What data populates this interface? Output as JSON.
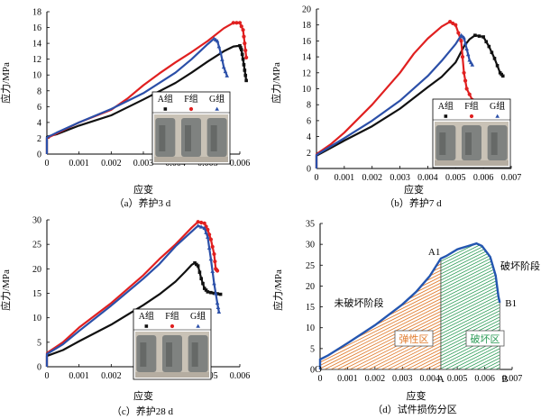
{
  "figure": {
    "panels": [
      {
        "caption": "（a）养护3 d",
        "ylabel": "应力/MPa",
        "xlabel": "应变"
      },
      {
        "caption": "（b）养护7 d",
        "ylabel": "应力/MPa",
        "xlabel": "应变"
      },
      {
        "caption": "（c）养护28 d",
        "ylabel": "应力/MPa",
        "xlabel": "应变"
      },
      {
        "caption": "（d）试件损伤分区",
        "ylabel": "应力/MPa",
        "xlabel": "应变"
      }
    ],
    "legend_labels": [
      "A组",
      "F组",
      "G组"
    ]
  },
  "chart_data": [
    {
      "type": "line",
      "caption": "（a）养护3 d",
      "xlabel": "应变",
      "ylabel": "应力/MPa",
      "xlim": [
        0,
        0.006
      ],
      "ylim": [
        0,
        18
      ],
      "xticks": [
        "0",
        "0.001",
        "0.002",
        "0.003",
        "0.004",
        "0.005",
        "0.006"
      ],
      "yticks": [
        "0",
        "2",
        "4",
        "6",
        "8",
        "10",
        "12",
        "14",
        "16",
        "18"
      ],
      "legend": {
        "position": "bottom-right (inset with specimen photo)"
      },
      "series": [
        {
          "name": "A组",
          "color": "#111111",
          "marker": "square",
          "points": [
            [
              0,
              0
            ],
            [
              0,
              2.2
            ],
            [
              0.0003,
              2.5
            ],
            [
              0.001,
              3.6
            ],
            [
              0.002,
              4.9
            ],
            [
              0.003,
              6.9
            ],
            [
              0.004,
              9.0
            ],
            [
              0.0045,
              10.3
            ],
            [
              0.005,
              11.7
            ],
            [
              0.0055,
              13.0
            ],
            [
              0.0058,
              13.6
            ],
            [
              0.006,
              13.7
            ],
            [
              0.00605,
              13.2
            ],
            [
              0.0061,
              12.0
            ],
            [
              0.00615,
              10.6
            ],
            [
              0.0062,
              9.3
            ]
          ]
        },
        {
          "name": "F组",
          "color": "#e02020",
          "marker": "circle",
          "points": [
            [
              0,
              0
            ],
            [
              0,
              2.0
            ],
            [
              0.0003,
              2.6
            ],
            [
              0.001,
              4.0
            ],
            [
              0.002,
              5.6
            ],
            [
              0.0025,
              7.0
            ],
            [
              0.003,
              8.7
            ],
            [
              0.0035,
              10.2
            ],
            [
              0.004,
              11.6
            ],
            [
              0.0045,
              12.9
            ],
            [
              0.005,
              14.3
            ],
            [
              0.0055,
              15.9
            ],
            [
              0.0058,
              16.6
            ],
            [
              0.006,
              16.6
            ],
            [
              0.0061,
              15.7
            ],
            [
              0.00615,
              14.0
            ],
            [
              0.0062,
              12.2
            ]
          ]
        },
        {
          "name": "G组",
          "color": "#2b4fa8",
          "marker": "triangle",
          "points": [
            [
              0,
              0
            ],
            [
              0,
              2.1
            ],
            [
              0.0003,
              2.7
            ],
            [
              0.001,
              4.0
            ],
            [
              0.002,
              5.7
            ],
            [
              0.003,
              7.7
            ],
            [
              0.004,
              10.3
            ],
            [
              0.0045,
              12.0
            ],
            [
              0.005,
              13.9
            ],
            [
              0.0052,
              14.6
            ],
            [
              0.0053,
              14.3
            ],
            [
              0.0054,
              12.9
            ],
            [
              0.0055,
              11.0
            ],
            [
              0.0056,
              9.9
            ]
          ]
        }
      ]
    },
    {
      "type": "line",
      "caption": "（b）养护7 d",
      "xlabel": "应变",
      "ylabel": "应力/MPa",
      "xlim": [
        0,
        0.007
      ],
      "ylim": [
        0,
        20
      ],
      "xticks": [
        "0",
        "0.001",
        "0.002",
        "0.003",
        "0.004",
        "0.005",
        "0.006",
        "0.007"
      ],
      "yticks": [
        "0",
        "2",
        "4",
        "6",
        "8",
        "10",
        "12",
        "14",
        "16",
        "18",
        "20"
      ],
      "legend": {
        "position": "bottom-right (inset with specimen photo)"
      },
      "series": [
        {
          "name": "A组",
          "color": "#111111",
          "marker": "square",
          "points": [
            [
              0,
              0
            ],
            [
              0,
              1.6
            ],
            [
              0.001,
              3.5
            ],
            [
              0.002,
              5.3
            ],
            [
              0.003,
              7.5
            ],
            [
              0.004,
              10.2
            ],
            [
              0.0045,
              11.5
            ],
            [
              0.005,
              13.3
            ],
            [
              0.0053,
              15.3
            ],
            [
              0.0055,
              16.2
            ],
            [
              0.0057,
              16.7
            ],
            [
              0.006,
              16.5
            ],
            [
              0.0062,
              15.3
            ],
            [
              0.0064,
              13.8
            ],
            [
              0.0066,
              12.0
            ],
            [
              0.0067,
              11.6
            ]
          ]
        },
        {
          "name": "F组",
          "color": "#e02020",
          "marker": "circle",
          "points": [
            [
              0,
              0
            ],
            [
              0,
              1.8
            ],
            [
              0.0005,
              3.0
            ],
            [
              0.001,
              4.5
            ],
            [
              0.002,
              8.0
            ],
            [
              0.003,
              12.0
            ],
            [
              0.0035,
              14.4
            ],
            [
              0.004,
              16.3
            ],
            [
              0.0045,
              17.8
            ],
            [
              0.0048,
              18.4
            ],
            [
              0.005,
              18.0
            ],
            [
              0.0052,
              16.0
            ],
            [
              0.0053,
              12.0
            ],
            [
              0.0054,
              10.0
            ],
            [
              0.0056,
              8.6
            ],
            [
              0.0059,
              8.0
            ]
          ]
        },
        {
          "name": "G组",
          "color": "#2b4fa8",
          "marker": "triangle",
          "points": [
            [
              0,
              0
            ],
            [
              0,
              1.7
            ],
            [
              0.001,
              3.8
            ],
            [
              0.002,
              6.0
            ],
            [
              0.003,
              8.5
            ],
            [
              0.004,
              11.6
            ],
            [
              0.0045,
              13.5
            ],
            [
              0.005,
              15.6
            ],
            [
              0.0052,
              16.7
            ],
            [
              0.0053,
              16.4
            ],
            [
              0.0054,
              15.0
            ],
            [
              0.0055,
              13.6
            ],
            [
              0.0056,
              13.0
            ]
          ]
        }
      ]
    },
    {
      "type": "line",
      "caption": "（c）养护28 d",
      "xlabel": "应变",
      "ylabel": "应力/MPa",
      "xlim": [
        0,
        0.006
      ],
      "ylim": [
        0,
        30
      ],
      "xticks": [
        "0",
        "0.001",
        "0.002",
        "0.003",
        "0.004",
        "0.005",
        "0.006"
      ],
      "yticks": [
        "0",
        "5",
        "10",
        "15",
        "20",
        "25",
        "30"
      ],
      "legend": {
        "position": "bottom-right (inset with specimen photo)"
      },
      "series": [
        {
          "name": "A组",
          "color": "#111111",
          "marker": "square",
          "points": [
            [
              0,
              0
            ],
            [
              0,
              2.2
            ],
            [
              0.0005,
              3.4
            ],
            [
              0.001,
              5.2
            ],
            [
              0.002,
              8.6
            ],
            [
              0.003,
              12.6
            ],
            [
              0.0035,
              14.8
            ],
            [
              0.004,
              17.4
            ],
            [
              0.0043,
              19.4
            ],
            [
              0.0045,
              20.8
            ],
            [
              0.0046,
              21.2
            ],
            [
              0.0047,
              20.6
            ],
            [
              0.0048,
              18.0
            ],
            [
              0.0049,
              16.0
            ],
            [
              0.005,
              15.3
            ],
            [
              0.0052,
              15.0
            ],
            [
              0.0054,
              14.8
            ]
          ]
        },
        {
          "name": "F组",
          "color": "#e02020",
          "marker": "circle",
          "points": [
            [
              0,
              0
            ],
            [
              0,
              2.8
            ],
            [
              0.0005,
              5.0
            ],
            [
              0.001,
              8.0
            ],
            [
              0.002,
              13.0
            ],
            [
              0.003,
              18.7
            ],
            [
              0.0035,
              22.0
            ],
            [
              0.004,
              25.0
            ],
            [
              0.0045,
              28.4
            ],
            [
              0.0047,
              29.6
            ],
            [
              0.0049,
              29.3
            ],
            [
              0.005,
              28.0
            ],
            [
              0.0051,
              26.0
            ],
            [
              0.0052,
              23.0
            ],
            [
              0.00525,
              20.0
            ],
            [
              0.0053,
              19.6
            ]
          ]
        },
        {
          "name": "G组",
          "color": "#2b4fa8",
          "marker": "triangle",
          "points": [
            [
              0,
              0
            ],
            [
              0,
              2.6
            ],
            [
              0.0005,
              4.6
            ],
            [
              0.001,
              7.3
            ],
            [
              0.002,
              12.5
            ],
            [
              0.003,
              18.0
            ],
            [
              0.0035,
              21.0
            ],
            [
              0.004,
              24.6
            ],
            [
              0.0045,
              27.6
            ],
            [
              0.0047,
              28.8
            ],
            [
              0.0049,
              28.3
            ],
            [
              0.005,
              26.5
            ],
            [
              0.0051,
              22.0
            ],
            [
              0.0052,
              17.0
            ],
            [
              0.0053,
              13.0
            ],
            [
              0.00535,
              11.2
            ]
          ]
        }
      ]
    },
    {
      "type": "line",
      "caption": "（d）试件损伤分区",
      "xlabel": "应变",
      "ylabel": "应力/MPa",
      "xlim": [
        0,
        0.007
      ],
      "ylim": [
        0,
        35
      ],
      "xticks": [
        "0",
        "0.001",
        "0.002",
        "0.003",
        "0.004",
        "0.005",
        "0.006",
        "0.007"
      ],
      "yticks": [
        "0",
        "5",
        "10",
        "15",
        "20",
        "25",
        "30",
        "35"
      ],
      "series": [
        {
          "name": "",
          "color": "#2456b0",
          "points": [
            [
              0,
              0
            ],
            [
              0,
              2.4
            ],
            [
              0.0003,
              3.4
            ],
            [
              0.001,
              6.3
            ],
            [
              0.002,
              10.6
            ],
            [
              0.003,
              15.6
            ],
            [
              0.0035,
              18.6
            ],
            [
              0.004,
              22.4
            ],
            [
              0.0044,
              26.6
            ],
            [
              0.0046,
              27.2
            ],
            [
              0.005,
              28.8
            ],
            [
              0.0054,
              29.6
            ],
            [
              0.0057,
              30.2
            ],
            [
              0.0059,
              29.6
            ],
            [
              0.0062,
              27.0
            ],
            [
              0.0064,
              22.5
            ],
            [
              0.0065,
              17.5
            ],
            [
              0.00655,
              16.0
            ]
          ]
        }
      ],
      "annotations": {
        "point_labels": [
          "O",
          "A1",
          "B1",
          "A",
          "B"
        ],
        "points": {
          "O": [
            0,
            0
          ],
          "A1": [
            0.0044,
            26.6
          ],
          "B1": [
            0.00655,
            16.0
          ],
          "A": [
            0.0044,
            0
          ],
          "B": [
            0.00655,
            0
          ]
        },
        "regions": [
          {
            "label": "弹性区",
            "color": "#e07a2b",
            "x_range": [
              0,
              0.0044
            ]
          },
          {
            "label": "破坏区",
            "color": "#2a9a55",
            "x_range": [
              0.0044,
              0.00655
            ]
          }
        ],
        "stage_labels": [
          "未破坏阶段",
          "破坏阶段"
        ]
      }
    }
  ]
}
